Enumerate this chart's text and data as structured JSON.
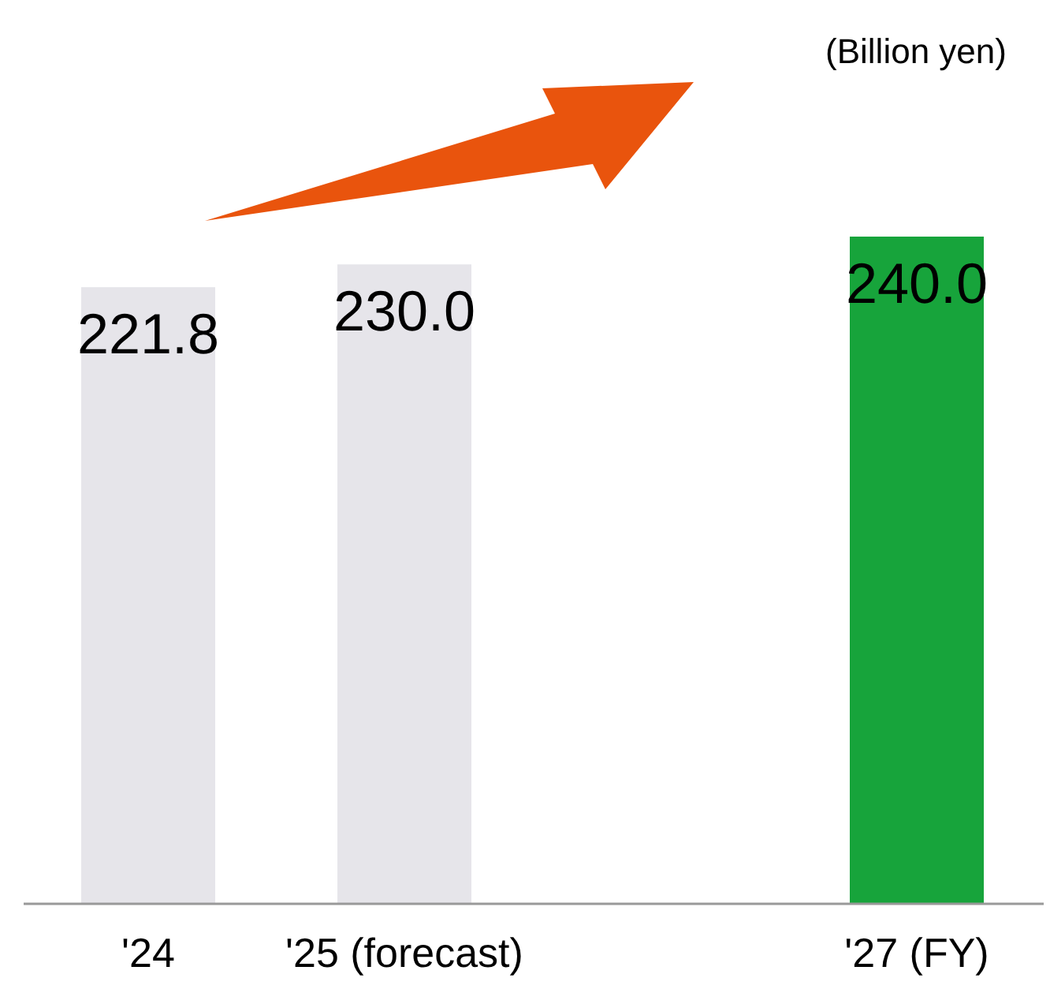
{
  "chart_data": {
    "type": "bar",
    "categories": [
      "'24",
      "'25 (forecast)",
      null,
      "'27 (FY)"
    ],
    "values": [
      221.8,
      230.0,
      null,
      240.0
    ],
    "colors": [
      "#e6e5ea",
      "#e6e5ea",
      null,
      "#17a43b"
    ],
    "value_labels": [
      "221.8",
      "230.0",
      null,
      "240.0"
    ],
    "tick_labels": "x",
    "annotations": [
      "(Billion yen)"
    ]
  }
}
